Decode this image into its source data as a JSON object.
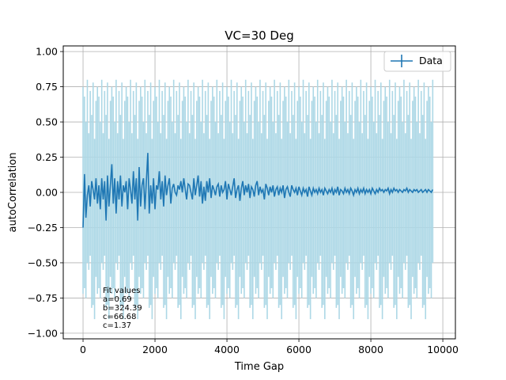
{
  "chart_data": {
    "type": "line",
    "title": "VC=30 Deg",
    "xlabel": "Time Gap",
    "ylabel": "autoCorrelation",
    "xlim": [
      -550,
      10350
    ],
    "ylim": [
      -1.04,
      1.04
    ],
    "xticks": [
      0,
      2000,
      4000,
      6000,
      8000,
      10000
    ],
    "xtick_labels": [
      "0",
      "2000",
      "4000",
      "6000",
      "8000",
      "10000"
    ],
    "yticks": [
      -1.0,
      -0.75,
      -0.5,
      -0.25,
      0.0,
      0.25,
      0.5,
      0.75,
      1.0
    ],
    "ytick_labels": [
      "−1.00",
      "−0.75",
      "−0.50",
      "−0.25",
      "0.00",
      "0.25",
      "0.50",
      "0.75",
      "1.00"
    ],
    "grid": true,
    "legend_position": "top-right",
    "series": [
      {
        "name": "Data",
        "color": "#1f77b4",
        "error_color": "#add8e6",
        "x_start": 0,
        "x_step": 40,
        "values": [
          -0.25,
          0.13,
          -0.18,
          -0.02,
          0.05,
          -0.1,
          0.08,
          0.02,
          -0.05,
          0.1,
          -0.08,
          0.05,
          -0.12,
          0.1,
          -0.05,
          0.08,
          -0.2,
          0.12,
          -0.1,
          0.05,
          0.2,
          -0.08,
          0.1,
          -0.15,
          0.08,
          -0.05,
          0.12,
          -0.1,
          0.05,
          0.0,
          0.08,
          -0.12,
          0.1,
          0.02,
          -0.08,
          0.15,
          -0.05,
          0.1,
          -0.2,
          0.18,
          -0.1,
          0.05,
          0.1,
          -0.12,
          0.08,
          0.28,
          -0.15,
          0.05,
          -0.08,
          0.1,
          -0.12,
          0.05,
          0.02,
          0.15,
          -0.05,
          0.08,
          -0.1,
          0.12,
          -0.02,
          0.05,
          0.1,
          -0.08,
          0.03,
          0.06,
          0.0,
          -0.02,
          0.05,
          0.02,
          0.08,
          0.0,
          0.1,
          0.02,
          -0.05,
          0.06,
          0.05,
          0.0,
          -0.05,
          0.1,
          -0.02,
          0.05,
          0.12,
          -0.03,
          0.08,
          -0.08,
          0.04,
          -0.06,
          0.08,
          0.0,
          0.1,
          -0.04,
          0.05,
          0.02,
          -0.02,
          0.04,
          0.06,
          -0.03,
          0.05,
          0.0,
          0.02,
          0.08,
          -0.05,
          0.06,
          0.02,
          -0.02,
          0.04,
          0.1,
          -0.04,
          0.02,
          0.05,
          -0.06,
          0.03,
          0.08,
          -0.02,
          0.05,
          0.0,
          0.06,
          -0.04,
          0.04,
          0.02,
          -0.03,
          0.05,
          0.08,
          -0.02,
          0.04,
          0.0,
          0.02,
          -0.05,
          0.06,
          0.03,
          -0.02,
          0.04,
          0.0,
          0.05,
          -0.03,
          0.02,
          0.04,
          -0.02,
          0.03,
          0.0,
          0.05,
          -0.04,
          0.02,
          0.04,
          0.0,
          -0.03,
          0.05,
          0.02,
          0.0,
          0.03,
          -0.02,
          0.04,
          0.01,
          -0.02,
          0.03,
          0.0,
          0.02,
          -0.03,
          0.04,
          0.01,
          -0.02,
          0.03,
          0.0,
          0.02,
          -0.01,
          0.03,
          0.0,
          0.02,
          -0.02,
          0.03,
          0.01,
          -0.01,
          0.02,
          0.0,
          0.03,
          -0.02,
          0.02,
          0.0,
          0.04,
          -0.02,
          0.02,
          0.01,
          -0.01,
          0.03,
          0.0,
          0.02,
          -0.01,
          0.03,
          0.01,
          -0.02,
          0.02,
          0.0,
          0.03,
          -0.01,
          0.02,
          0.0,
          0.03,
          -0.01,
          0.02,
          0.0,
          0.02,
          -0.01,
          0.03,
          0.01,
          -0.01,
          0.02,
          0.0,
          0.03,
          0.01,
          0.02,
          0.0,
          0.02,
          0.01,
          0.03,
          -0.01,
          0.02,
          0.0,
          0.03,
          0.01,
          0.02,
          0.0,
          0.02,
          0.01,
          0.0,
          0.02,
          0.01,
          0.03,
          0.0,
          0.02,
          0.01,
          0.0,
          0.02,
          0.01,
          0.02,
          0.0,
          0.01,
          0.02,
          0.0,
          0.01,
          0.02,
          0.0,
          0.02,
          0.01,
          0.0,
          0.02
        ],
        "error_upper_pattern": [
          0.75,
          0.68,
          0.5,
          0.8,
          0.42,
          0.72,
          0.55,
          0.78,
          0.38,
          0.65
        ],
        "error_lower_pattern": [
          -0.72,
          -0.8,
          -0.55,
          -0.68,
          -0.9,
          -0.45,
          -0.75,
          -0.6,
          -0.82,
          -0.5
        ]
      }
    ]
  },
  "fit_box": {
    "lines": [
      "Fit values",
      "a=0.69",
      "b=324.39",
      "c=66.68",
      "c=1.37"
    ]
  },
  "colors": {
    "line": "#1f77b4",
    "errorbars": "#add8e6",
    "grid": "#b0b0b0"
  }
}
